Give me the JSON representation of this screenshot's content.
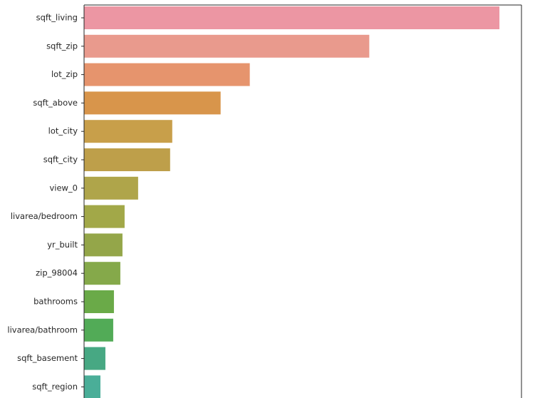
{
  "chart_data": {
    "type": "bar",
    "orientation": "horizontal",
    "title": "",
    "xlabel": "",
    "ylabel": "",
    "categories": [
      "sqft_living",
      "sqft_zip",
      "lot_zip",
      "sqft_above",
      "lot_city",
      "sqft_city",
      "view_0",
      "livarea/bedroom",
      "yr_built",
      "zip_98004",
      "bathrooms",
      "livarea/bathroom",
      "sqft_basement",
      "sqft_region"
    ],
    "values": [
      584,
      401,
      233,
      192,
      124,
      121,
      76,
      57,
      54,
      51,
      42,
      41,
      30,
      23
    ],
    "xlim": [
      0,
      615
    ],
    "colors": [
      "#ec96a3",
      "#e99a8d",
      "#e6946d",
      "#d8954b",
      "#c89f4a",
      "#be9f4a",
      "#afa54a",
      "#a2a848",
      "#94a649",
      "#85a94a",
      "#6aaa48",
      "#52ab57",
      "#47a883",
      "#4aae98"
    ],
    "grid": false,
    "legend": "none"
  }
}
